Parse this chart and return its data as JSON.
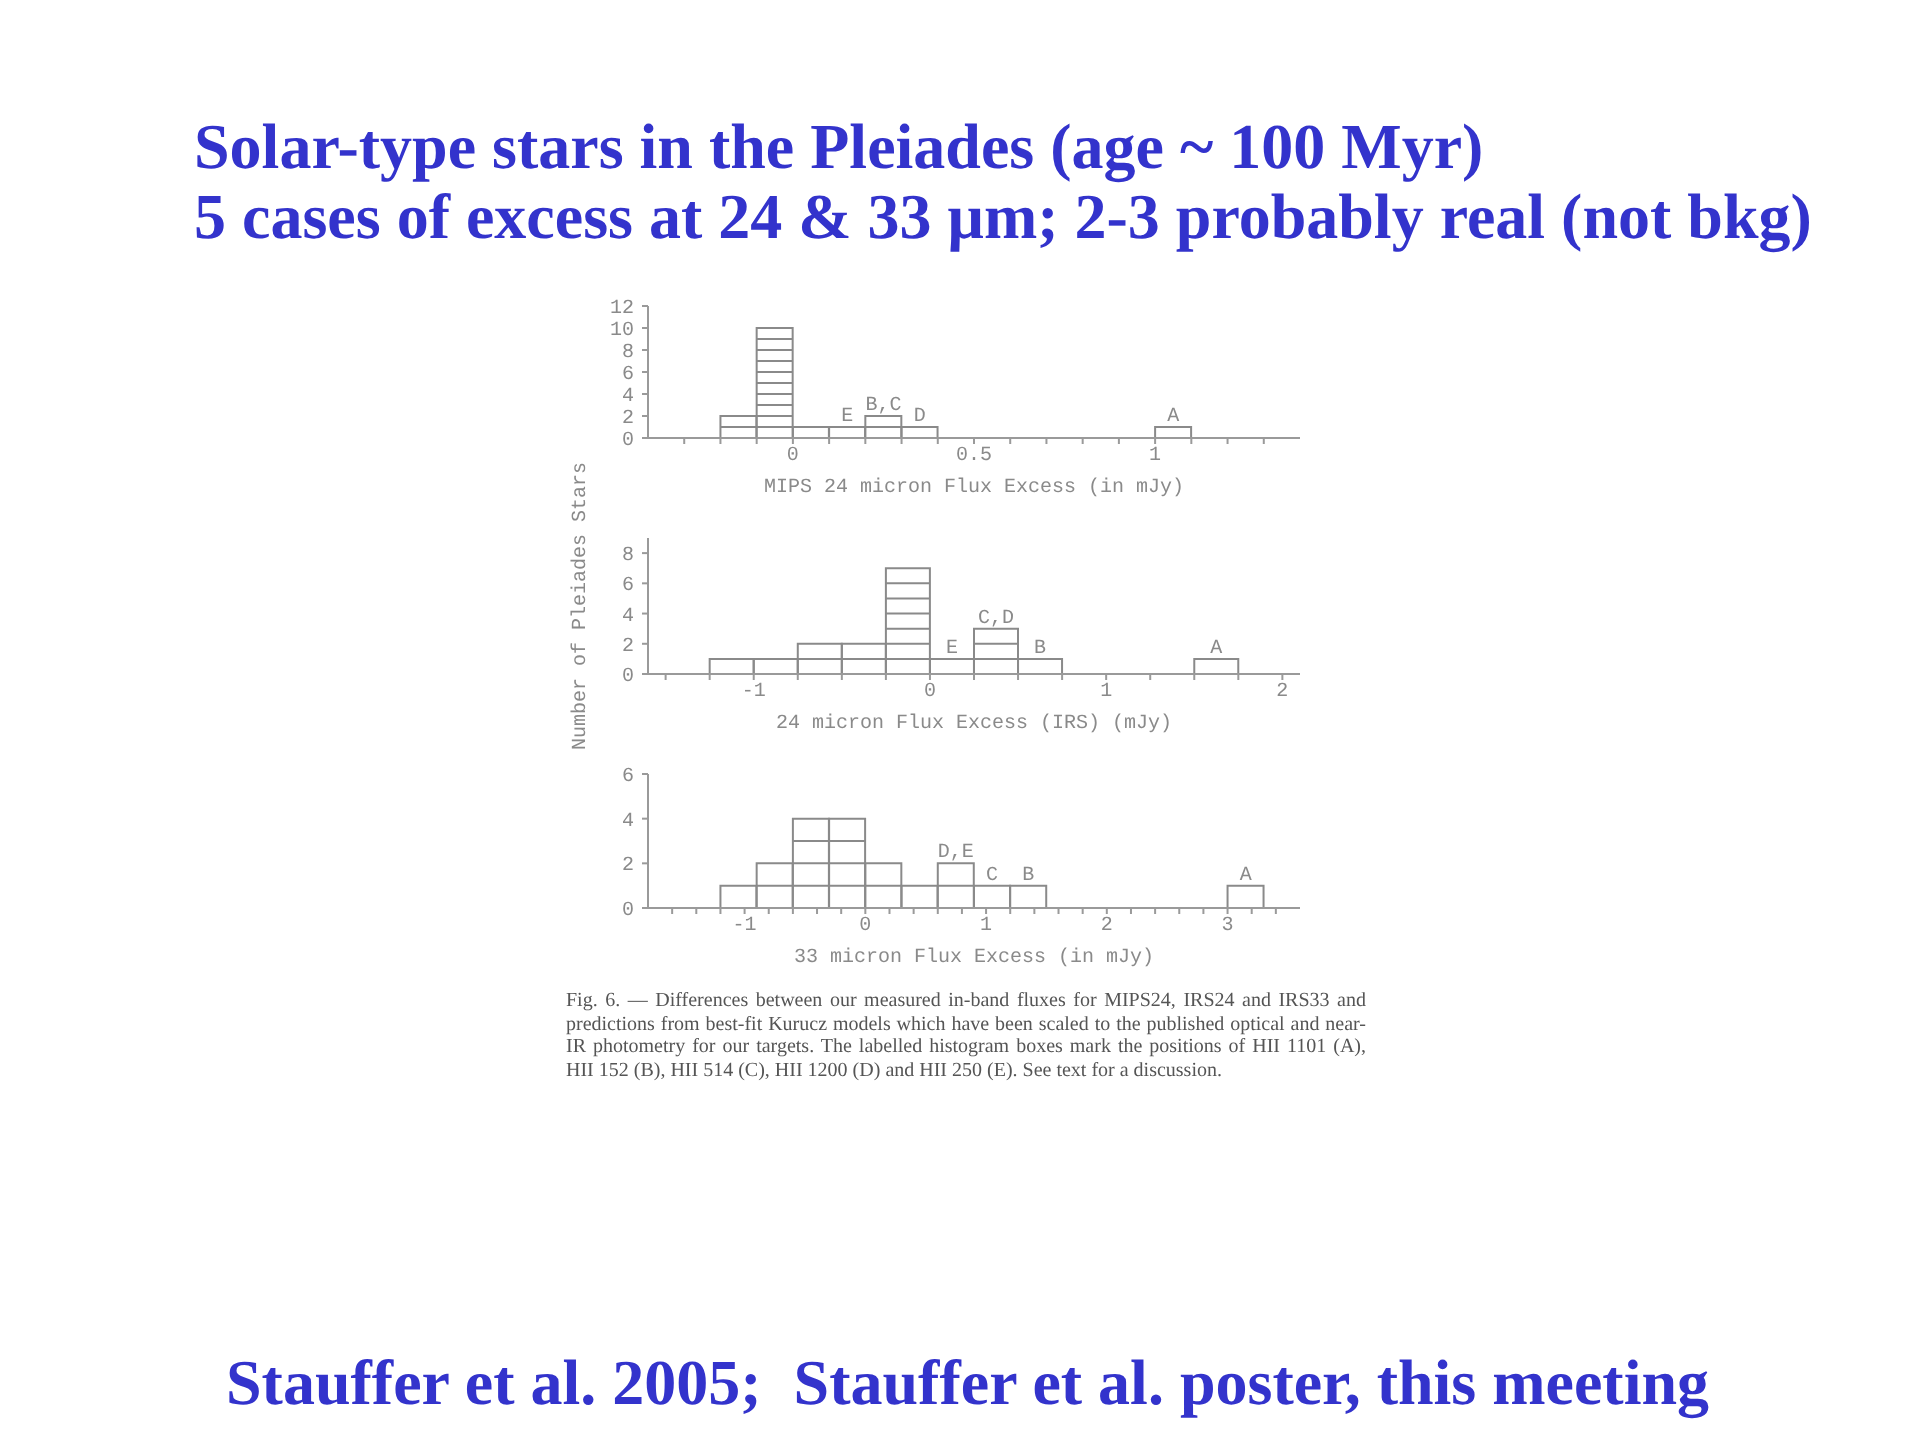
{
  "chart_data": [
    {
      "type": "histogram",
      "title": "Solar-type stars in the Pleiades (age ~ 100 Myr)",
      "subtitle": "5 cases of excess at 24 & 33 μm; 2-3 probably real (not bkg)",
      "xlabel": "MIPS 24 micron Flux Excess (in mJy)",
      "bins": [
        -0.2,
        -0.1,
        0,
        0.1,
        0.2,
        0.3,
        0.4,
        0.5,
        0.6,
        0.7,
        0.8,
        0.9,
        1.0,
        1.1
      ],
      "values": [
        2,
        10,
        1,
        1,
        2,
        1,
        0,
        0,
        0,
        0,
        0,
        0,
        1
      ],
      "color": "#8a8a8a",
      "xlim": [
        -0.4,
        1.4
      ],
      "xticks": [
        {
          "value": -0.3,
          "label": null
        },
        {
          "value": -0.2,
          "label": null
        },
        {
          "value": -0.1,
          "label": null
        },
        0,
        {
          "value": 0.1,
          "label": null
        },
        {
          "value": 0.2,
          "label": null
        },
        {
          "value": 0.3,
          "label": null
        },
        {
          "value": 0.4,
          "label": null
        },
        0.5,
        {
          "value": 0.6,
          "label": null
        },
        {
          "value": 0.7,
          "label": null
        },
        {
          "value": 0.8,
          "label": null
        },
        {
          "value": 0.9,
          "label": null
        },
        1,
        {
          "value": 1.1,
          "label": null
        },
        {
          "value": 1.2,
          "label": null
        },
        {
          "value": 1.3,
          "label": null
        }
      ],
      "ylim": [
        0,
        12
      ],
      "yticks": [
        0,
        2,
        4,
        6,
        8,
        10,
        12
      ],
      "annotations": [
        {
          "text": "E",
          "x": 0.15,
          "y": 1
        },
        {
          "text": "B,C",
          "x": 0.25,
          "y": 2
        },
        {
          "text": "D",
          "x": 0.35,
          "y": 1
        },
        {
          "text": "A",
          "x": 1.05,
          "y": 1
        }
      ]
    },
    {
      "type": "histogram",
      "xlabel": "24 micron Flux Excess (IRS) (mJy)",
      "ylabel": "Number of Pleiades Stars",
      "bins": [
        -1.25,
        -1,
        -0.75,
        -0.5,
        -0.25,
        0,
        0.25,
        0.5,
        0.75,
        1,
        1.25,
        1.5,
        1.75
      ],
      "values": [
        1,
        1,
        2,
        2,
        7,
        1,
        3,
        1,
        0,
        0,
        0,
        1
      ],
      "color": "#8a8a8a",
      "xlim": [
        -1.6,
        2.1
      ],
      "xticks": [
        {
          "value": -1.5,
          "label": null
        },
        {
          "value": -1.25,
          "label": null
        },
        -1,
        {
          "value": -0.75,
          "label": null
        },
        {
          "value": -0.5,
          "label": null
        },
        {
          "value": -0.25,
          "label": null
        },
        0,
        {
          "value": 0.25,
          "label": null
        },
        {
          "value": 0.5,
          "label": null
        },
        {
          "value": 0.75,
          "label": null
        },
        1,
        {
          "value": 1.25,
          "label": null
        },
        {
          "value": 1.5,
          "label": null
        },
        {
          "value": 1.75,
          "label": null
        },
        2
      ],
      "ylim": [
        0,
        9
      ],
      "yticks": [
        0,
        2,
        4,
        6,
        8
      ],
      "annotations": [
        {
          "text": "E",
          "x": 0.125,
          "y": 1
        },
        {
          "text": "C,D",
          "x": 0.375,
          "y": 3
        },
        {
          "text": "B",
          "x": 0.625,
          "y": 1
        },
        {
          "text": "A",
          "x": 1.625,
          "y": 1
        }
      ]
    },
    {
      "type": "histogram",
      "xlabel": "33 micron Flux Excess (in mJy)",
      "bins": [
        -1.2,
        -0.9,
        -0.6,
        -0.3,
        0,
        0.3,
        0.6,
        0.9,
        1.2,
        1.5,
        1.8,
        2.1,
        2.4,
        2.7,
        3.0,
        3.3
      ],
      "values": [
        1,
        2,
        4,
        4,
        2,
        1,
        2,
        1,
        1,
        0,
        0,
        0,
        0,
        0,
        1
      ],
      "color": "#8a8a8a",
      "xlim": [
        -1.8,
        3.6
      ],
      "xticks": [
        {
          "value": -1.6,
          "label": null
        },
        {
          "value": -1.4,
          "label": null
        },
        {
          "value": -1.2,
          "label": null
        },
        -1,
        {
          "value": -0.8,
          "label": null
        },
        {
          "value": -0.6,
          "label": null
        },
        {
          "value": -0.4,
          "label": null
        },
        {
          "value": -0.2,
          "label": null
        },
        0,
        {
          "value": 0.2,
          "label": null
        },
        {
          "value": 0.4,
          "label": null
        },
        {
          "value": 0.6,
          "label": null
        },
        {
          "value": 0.8,
          "label": null
        },
        1,
        {
          "value": 1.2,
          "label": null
        },
        {
          "value": 1.4,
          "label": null
        },
        {
          "value": 1.6,
          "label": null
        },
        {
          "value": 1.8,
          "label": null
        },
        2,
        {
          "value": 2.2,
          "label": null
        },
        {
          "value": 2.4,
          "label": null
        },
        {
          "value": 2.6,
          "label": null
        },
        {
          "value": 2.8,
          "label": null
        },
        3,
        {
          "value": 3.2,
          "label": null
        },
        {
          "value": 3.4,
          "label": null
        }
      ],
      "ylim": [
        0,
        6
      ],
      "yticks": [
        0,
        2,
        4,
        6
      ],
      "annotations": [
        {
          "text": "D,E",
          "x": 0.75,
          "y": 2
        },
        {
          "text": "C",
          "x": 1.05,
          "y": 1
        },
        {
          "text": "B",
          "x": 1.35,
          "y": 1
        },
        {
          "text": "A",
          "x": 3.15,
          "y": 1
        },
        "Fig. 6. — Differences between our measured in-band fluxes for MIPS24, IRS24 and IRS33 and predictions from best-fit Kurucz models which have been scaled to the published optical and near-IR photometry for our targets. The labelled histogram boxes mark the positions of HII 1101 (A), HII 152 (B), HII 514 (C), HII 1200 (D) and HII 250 (E). See text for a discussion.",
        "Stauffer et al. 2005;  Stauffer et al. poster, this meeting"
      ]
    }
  ]
}
